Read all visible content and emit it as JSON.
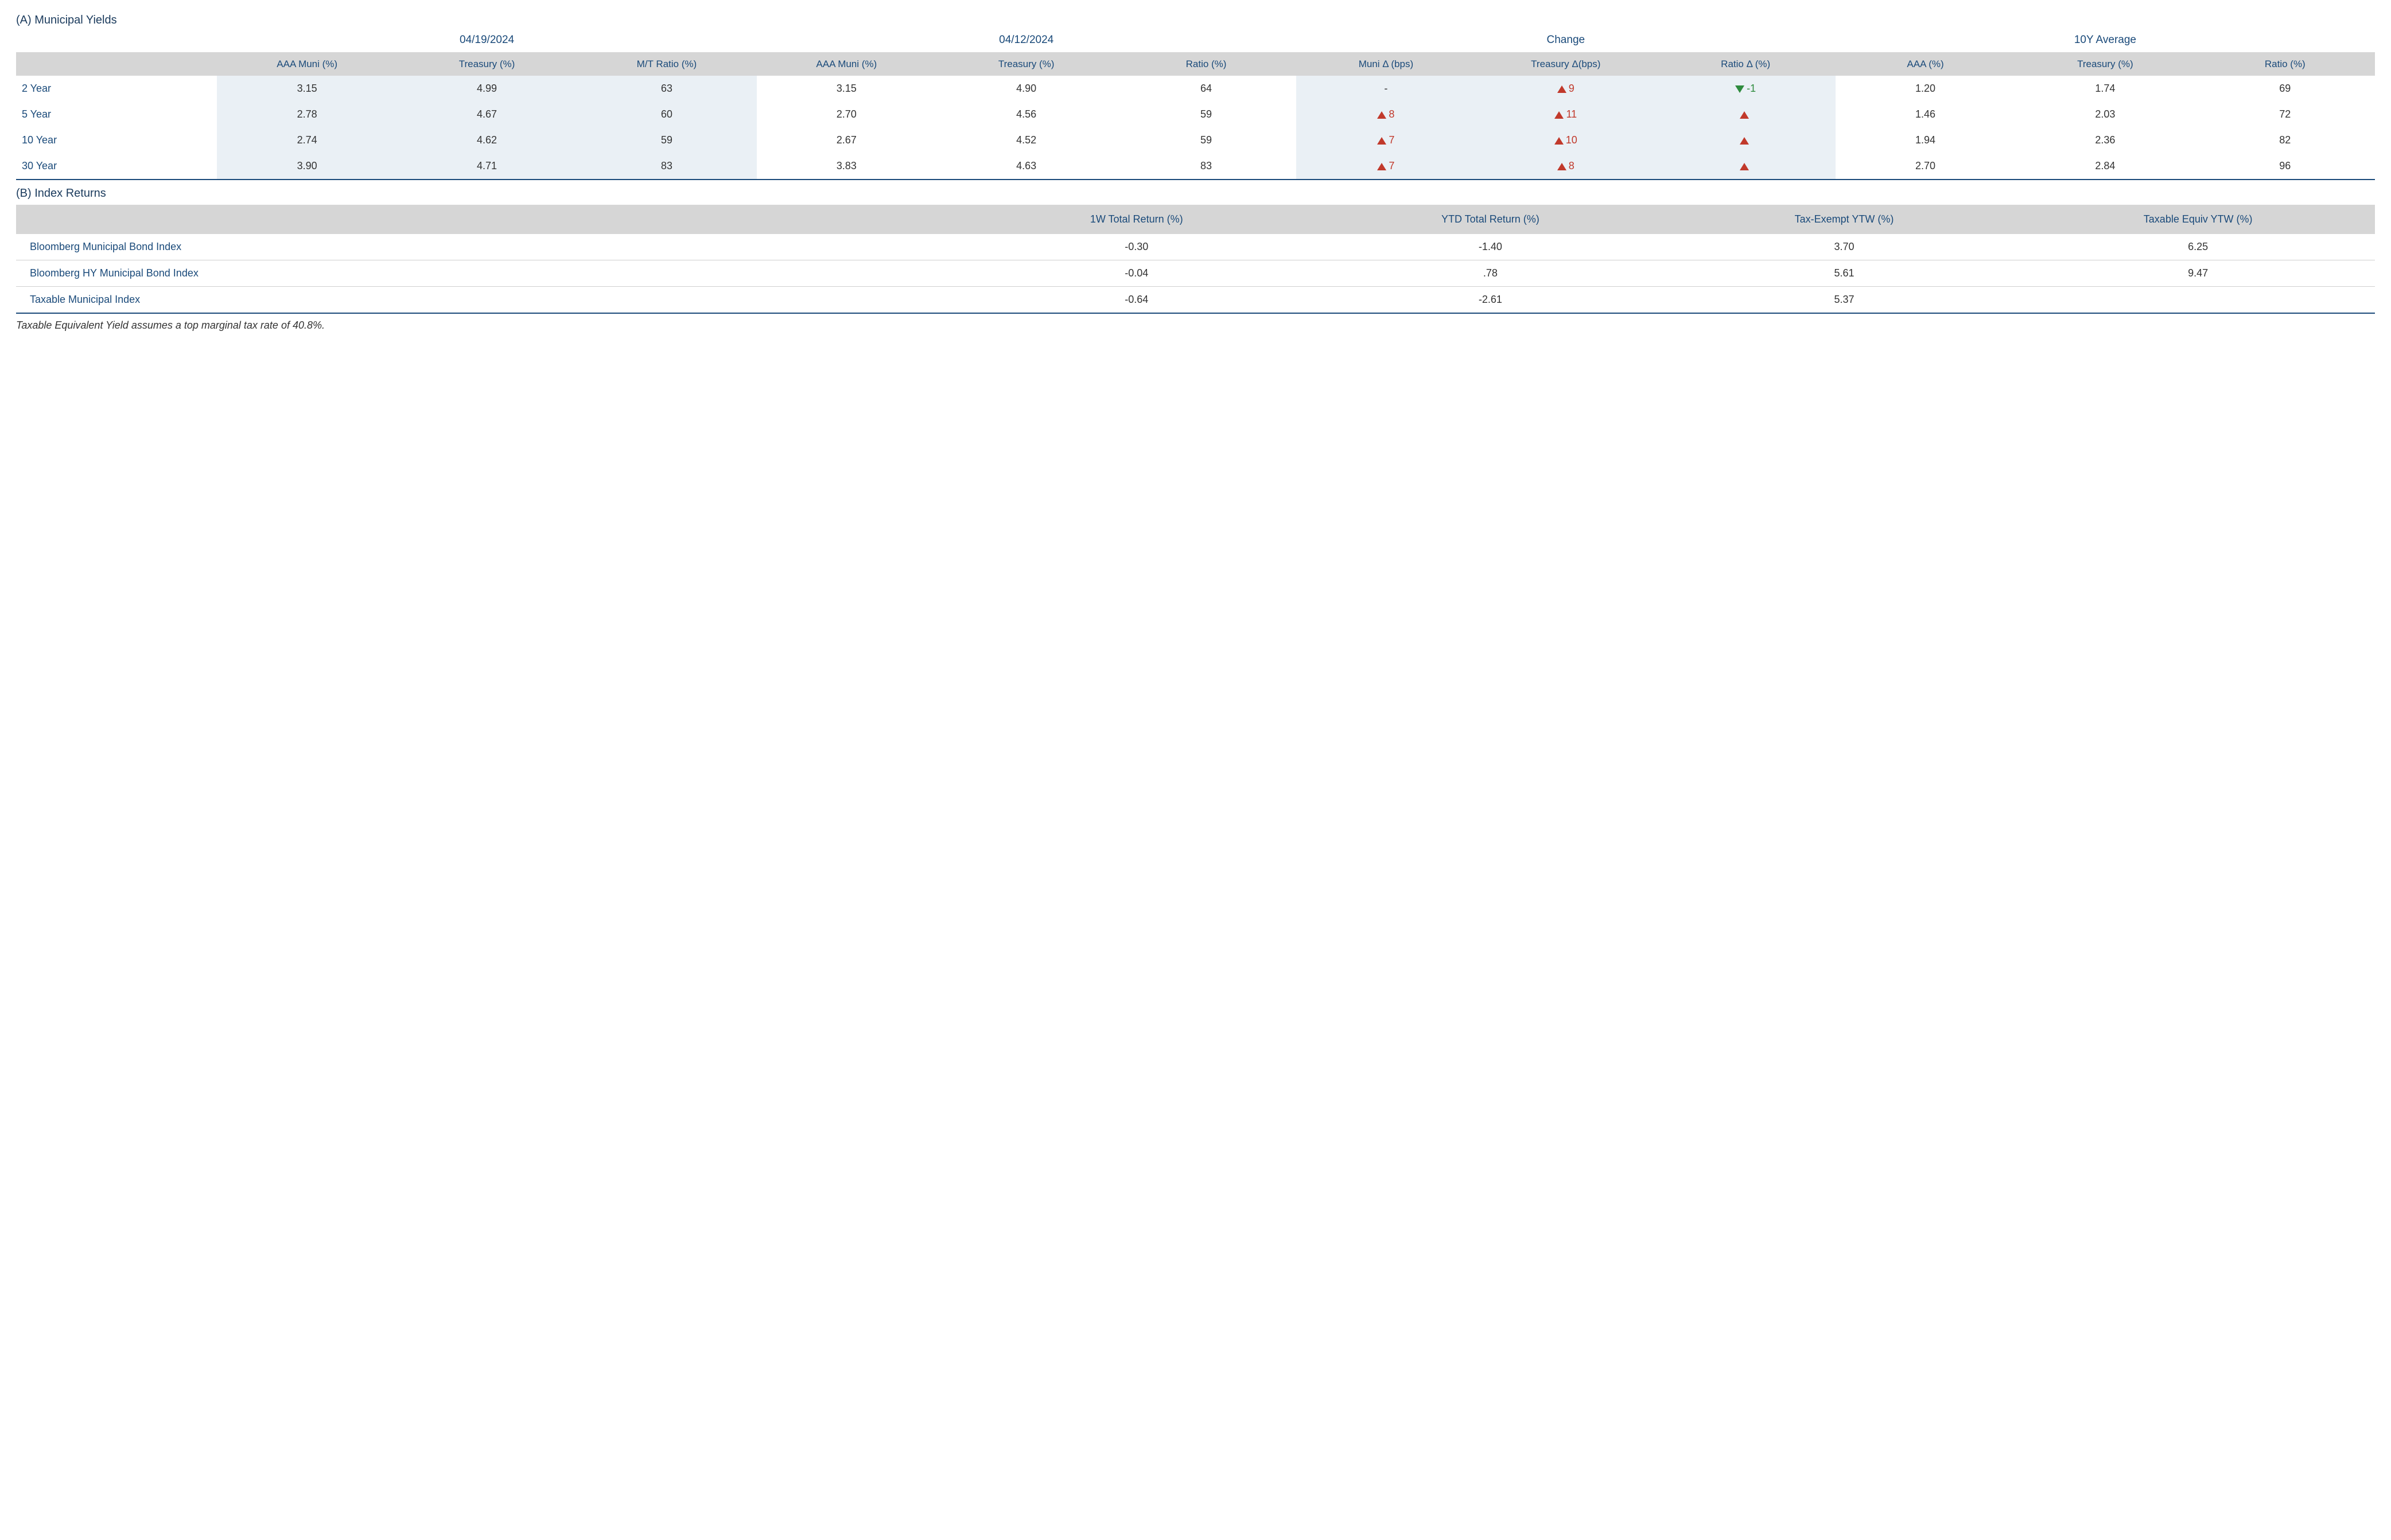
{
  "colors": {
    "heading": "#1a3a5c",
    "header_text": "#1a4a7a",
    "body_text": "#333333",
    "header_bg": "#d6d6d6",
    "shade_bg": "#eaf0f5",
    "rule": "#1a4a7a",
    "row_border": "#cfcfcf",
    "up": "#c1392b",
    "down": "#2e8b3d",
    "page_bg": "#ffffff"
  },
  "typography": {
    "title_fontsize_pt": 15,
    "header_fontsize_pt": 13,
    "body_fontsize_pt": 13.5,
    "footnote_fontsize_pt": 13.5,
    "font_family": "Segoe UI / Myriad-like sans-serif"
  },
  "sectionA": {
    "title": "(A) Municipal Yields",
    "group_headers": [
      "04/19/2024",
      "04/12/2024",
      "Change",
      "10Y Average"
    ],
    "sub_headers": {
      "g0": [
        "AAA Muni (%)",
        "Treasury (%)",
        "M/T Ratio (%)"
      ],
      "g1": [
        "AAA Muni (%)",
        "Treasury (%)",
        "Ratio (%)"
      ],
      "g2": [
        "Muni Δ (bps)",
        "Treasury Δ(bps)",
        "Ratio Δ (%)"
      ],
      "g3": [
        "AAA (%)",
        "Treasury (%)",
        "Ratio (%)"
      ]
    },
    "rows": [
      {
        "label": "2 Year",
        "g0": [
          "3.15",
          "4.99",
          "63"
        ],
        "g1": [
          "3.15",
          "4.90",
          "64"
        ],
        "g2": [
          {
            "dir": "none",
            "val": "-"
          },
          {
            "dir": "up",
            "val": "9"
          },
          {
            "dir": "down",
            "val": "-1"
          }
        ],
        "g3": [
          "1.20",
          "1.74",
          "69"
        ]
      },
      {
        "label": "5 Year",
        "g0": [
          "2.78",
          "4.67",
          "60"
        ],
        "g1": [
          "2.70",
          "4.56",
          "59"
        ],
        "g2": [
          {
            "dir": "up",
            "val": "8"
          },
          {
            "dir": "up",
            "val": "11"
          },
          {
            "dir": "up",
            "val": ""
          }
        ],
        "g3": [
          "1.46",
          "2.03",
          "72"
        ]
      },
      {
        "label": "10 Year",
        "g0": [
          "2.74",
          "4.62",
          "59"
        ],
        "g1": [
          "2.67",
          "4.52",
          "59"
        ],
        "g2": [
          {
            "dir": "up",
            "val": "7"
          },
          {
            "dir": "up",
            "val": "10"
          },
          {
            "dir": "up",
            "val": ""
          }
        ],
        "g3": [
          "1.94",
          "2.36",
          "82"
        ]
      },
      {
        "label": "30 Year",
        "g0": [
          "3.90",
          "4.71",
          "83"
        ],
        "g1": [
          "3.83",
          "4.63",
          "83"
        ],
        "g2": [
          {
            "dir": "up",
            "val": "7"
          },
          {
            "dir": "up",
            "val": "8"
          },
          {
            "dir": "up",
            "val": ""
          }
        ],
        "g3": [
          "2.70",
          "2.84",
          "96"
        ]
      }
    ]
  },
  "sectionB": {
    "title": "(B) Index Returns",
    "columns": [
      "1W Total Return (%)",
      "YTD Total Return (%)",
      "Tax-Exempt YTW (%)",
      "Taxable Equiv YTW (%)"
    ],
    "rows": [
      {
        "name": "Bloomberg Municipal Bond Index",
        "vals": [
          "-0.30",
          "-1.40",
          "3.70",
          "6.25"
        ]
      },
      {
        "name": "Bloomberg HY Municipal Bond Index",
        "vals": [
          "-0.04",
          ".78",
          "5.61",
          "9.47"
        ]
      },
      {
        "name": "Taxable Municipal Index",
        "vals": [
          "-0.64",
          "-2.61",
          "5.37",
          ""
        ]
      }
    ]
  },
  "footnote": "Taxable Equivalent Yield assumes a top marginal tax rate of 40.8%."
}
